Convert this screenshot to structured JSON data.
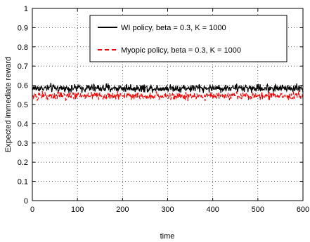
{
  "chart_data": {
    "type": "line",
    "xlabel": "time",
    "ylabel": "Expected immediate reward",
    "xlim": [
      0,
      600
    ],
    "ylim": [
      0,
      1
    ],
    "xticks": [
      "0",
      "100",
      "200",
      "300",
      "400",
      "500",
      "600"
    ],
    "yticks": [
      "0",
      "0.1",
      "0.2",
      "0.3",
      "0.4",
      "0.5",
      "0.6",
      "0.7",
      "0.8",
      "0.9",
      "1"
    ],
    "grid": true,
    "legend_position": "top-right",
    "series": [
      {
        "name": "WI policy, beta = 0.3, K = 1000",
        "color": "#000000",
        "style": "solid",
        "mean": 0.585,
        "x_range": [
          0,
          600
        ],
        "range": [
          0.56,
          0.625
        ]
      },
      {
        "name": "Myopic policy, beta = 0.3, K = 1000",
        "color": "#ff0000",
        "style": "dashed",
        "mean": 0.545,
        "x_range": [
          0,
          600
        ],
        "range": [
          0.51,
          0.58
        ]
      }
    ]
  }
}
